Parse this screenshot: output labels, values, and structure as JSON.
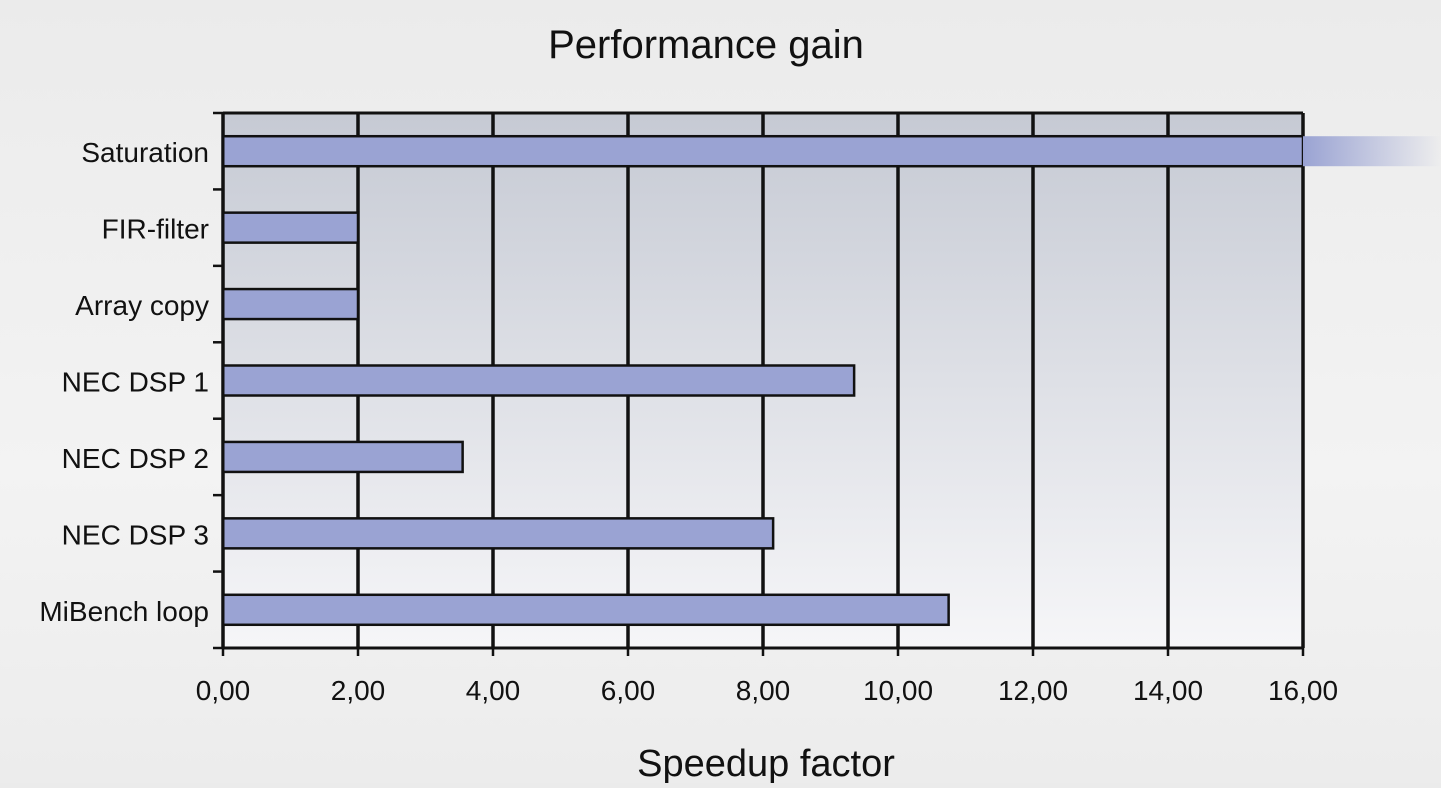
{
  "chart_data": {
    "type": "bar",
    "orientation": "horizontal",
    "title": "Performance gain",
    "xlabel": "Speedup factor",
    "ylabel": "",
    "categories": [
      "Saturation",
      "FIR-filter",
      "Array copy",
      "NEC DSP 1",
      "NEC DSP 2",
      "NEC DSP 3",
      "MiBench loop"
    ],
    "values": [
      16.0,
      2.0,
      2.0,
      9.35,
      3.55,
      8.15,
      10.75
    ],
    "xlim": [
      0,
      16
    ],
    "x_ticks": [
      0,
      2,
      4,
      6,
      8,
      10,
      12,
      14,
      16
    ],
    "x_tick_labels": [
      "0,00",
      "2,00",
      "4,00",
      "6,00",
      "8,00",
      "10,00",
      "12,00",
      "14,00",
      "16,00"
    ],
    "grid": "vertical",
    "legend": "none",
    "notes": "Saturation bar exceeds the axis maximum and fades out past the plot edge",
    "colors": {
      "bar_fill": "#9aa3d3",
      "bar_stroke": "#111111",
      "plot_bg_top": "#c6cad4",
      "plot_bg_bottom": "#f6f6f8",
      "grid": "#111111"
    }
  }
}
